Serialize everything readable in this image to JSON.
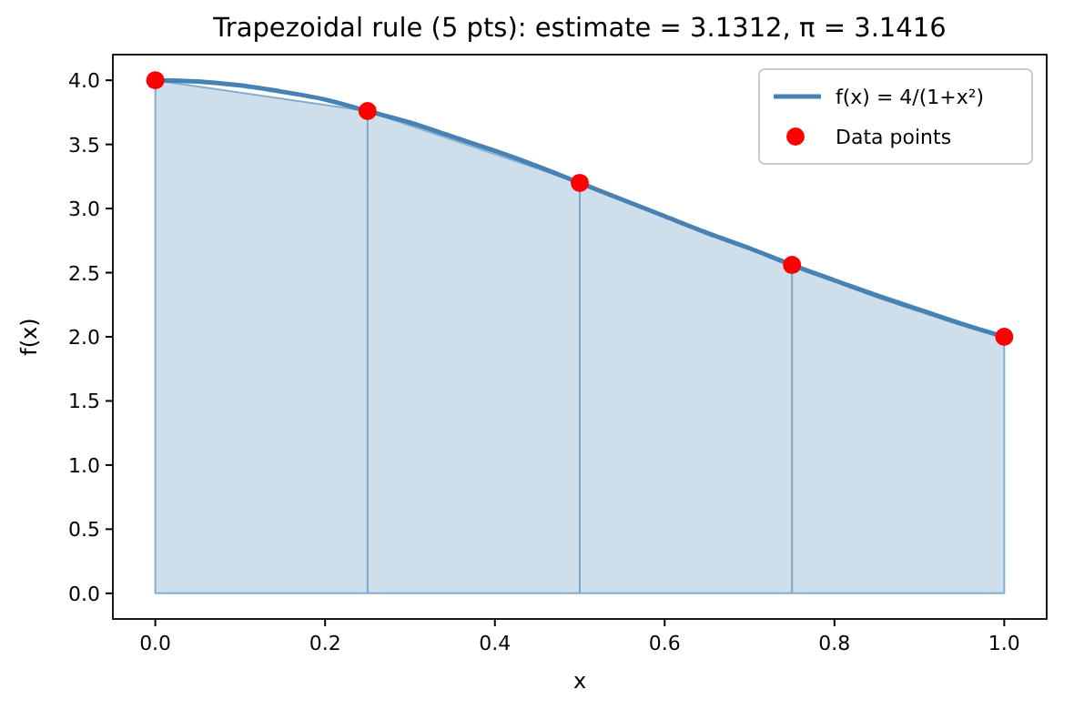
{
  "chart_data": {
    "type": "line",
    "title": "Trapezoidal rule (5 pts): estimate = 3.1312,  π = 3.1416",
    "xlabel": "x",
    "ylabel": "f(x)",
    "xlim": [
      -0.05,
      1.05
    ],
    "xticks": [
      {
        "value": 0,
        "label": "0.0"
      },
      {
        "value": 0.2,
        "label": "0.2"
      },
      {
        "value": 0.4,
        "label": "0.4"
      },
      {
        "value": 0.6,
        "label": "0.6"
      },
      {
        "value": 0.8,
        "label": "0.8"
      },
      {
        "value": 1,
        "label": "1.0"
      }
    ],
    "ylim": [
      -0.2,
      4.2
    ],
    "yticks": [
      {
        "value": 0,
        "label": "0.0"
      },
      {
        "value": 0.5,
        "label": "0.5"
      },
      {
        "value": 1,
        "label": "1.0"
      },
      {
        "value": 1.5,
        "label": "1.5"
      },
      {
        "value": 2,
        "label": "2.0"
      },
      {
        "value": 2.5,
        "label": "2.5"
      },
      {
        "value": 3,
        "label": "3.0"
      },
      {
        "value": 3.5,
        "label": "3.5"
      },
      {
        "value": 4,
        "label": "4.0"
      }
    ],
    "grid": false,
    "legend": "top right",
    "series": [
      {
        "type": "area",
        "color": "#cfdeeb",
        "x": [
          0,
          0.25,
          0.5,
          0.75,
          1
        ],
        "values": [
          4,
          3.76,
          3.2,
          2.56,
          2
        ]
      },
      {
        "type": "line",
        "name": "f(x) = 4/(1+x²)",
        "color": "#4682b4",
        "marker": "none",
        "line_style": "solid",
        "x": [
          0,
          0.05,
          0.1,
          0.15,
          0.2,
          0.25,
          0.3,
          0.35,
          0.4,
          0.45,
          0.5,
          0.55,
          0.6,
          0.65,
          0.7,
          0.75,
          0.8,
          0.85,
          0.9,
          0.95,
          1
        ],
        "values": [
          4,
          3.99,
          3.96,
          3.91,
          3.85,
          3.76,
          3.67,
          3.56,
          3.45,
          3.33,
          3.2,
          3.07,
          2.94,
          2.81,
          2.69,
          2.56,
          2.44,
          2.32,
          2.21,
          2.1,
          2
        ]
      },
      {
        "type": "scatter",
        "name": "Data points",
        "color": "#ff0000",
        "marker": "circle",
        "x": [
          0,
          0.25,
          0.5,
          0.75,
          1
        ],
        "values": [
          4,
          3.76,
          3.2,
          2.56,
          2
        ]
      }
    ]
  }
}
